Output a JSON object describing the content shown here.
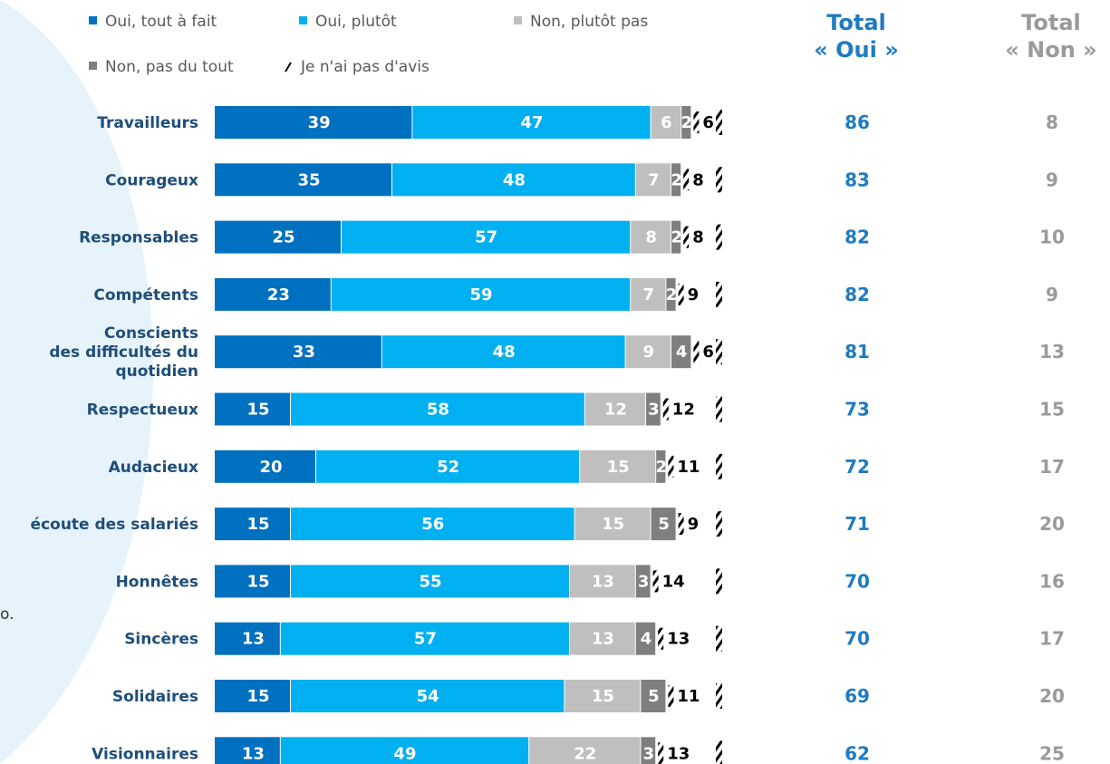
{
  "colors": {
    "oui_tout_a_fait": "#0070c0",
    "oui_plutot": "#00b0f0",
    "non_plutot_pas": "#bfbfbf",
    "non_pas_du_tout": "#7f7f7f",
    "sans_avis": "#000000",
    "category_text": "#1f4e79",
    "total_oui": "#1f7bc1",
    "total_non": "#9a9a9a",
    "background_arc": "#e6f3fb"
  },
  "legend": [
    {
      "label": "Oui, tout à fait",
      "color": "#0070c0"
    },
    {
      "label": "Oui, plutôt",
      "color": "#00b0f0"
    },
    {
      "label": "Non, plutôt pas",
      "color": "#bfbfbf"
    },
    {
      "label": "Non, pas du tout",
      "color": "#7f7f7f"
    },
    {
      "label": "Je n'ai pas d'avis",
      "color": "#000000"
    }
  ],
  "headers": {
    "total_oui": [
      "Total",
      "« Oui »"
    ],
    "total_non": [
      "Total",
      "« Non »"
    ]
  },
  "side_note": "o.",
  "chart_data": {
    "type": "bar",
    "orientation": "horizontal",
    "stacked": true,
    "categories": [
      [
        "Travailleurs"
      ],
      [
        "Courageux"
      ],
      [
        "Responsables"
      ],
      [
        "Compétents"
      ],
      [
        "Conscients",
        "des difficultés du",
        "quotidien"
      ],
      [
        "Respectueux"
      ],
      [
        "Audacieux"
      ],
      [
        "écoute des salariés"
      ],
      [
        "Honnêtes"
      ],
      [
        "Sincères"
      ],
      [
        "Solidaires"
      ],
      [
        "Visionnaires"
      ]
    ],
    "series": [
      {
        "name": "Oui, tout à fait",
        "values": [
          39,
          35,
          25,
          23,
          33,
          15,
          20,
          15,
          15,
          13,
          15,
          13
        ]
      },
      {
        "name": "Oui, plutôt",
        "values": [
          47,
          48,
          57,
          59,
          48,
          58,
          52,
          56,
          55,
          57,
          54,
          49
        ]
      },
      {
        "name": "Non, plutôt pas",
        "values": [
          6,
          7,
          8,
          7,
          9,
          12,
          15,
          15,
          13,
          13,
          15,
          22
        ]
      },
      {
        "name": "Non, pas du tout",
        "values": [
          2,
          2,
          2,
          2,
          4,
          3,
          2,
          5,
          3,
          4,
          5,
          3
        ]
      },
      {
        "name": "Je n'ai pas d'avis",
        "values": [
          6,
          8,
          8,
          9,
          6,
          12,
          11,
          9,
          14,
          13,
          11,
          13
        ]
      }
    ],
    "total_oui": [
      86,
      83,
      82,
      82,
      81,
      73,
      72,
      71,
      70,
      70,
      69,
      62
    ],
    "total_non": [
      8,
      9,
      10,
      9,
      13,
      15,
      17,
      20,
      16,
      17,
      20,
      25
    ],
    "xlim": [
      0,
      100
    ]
  }
}
